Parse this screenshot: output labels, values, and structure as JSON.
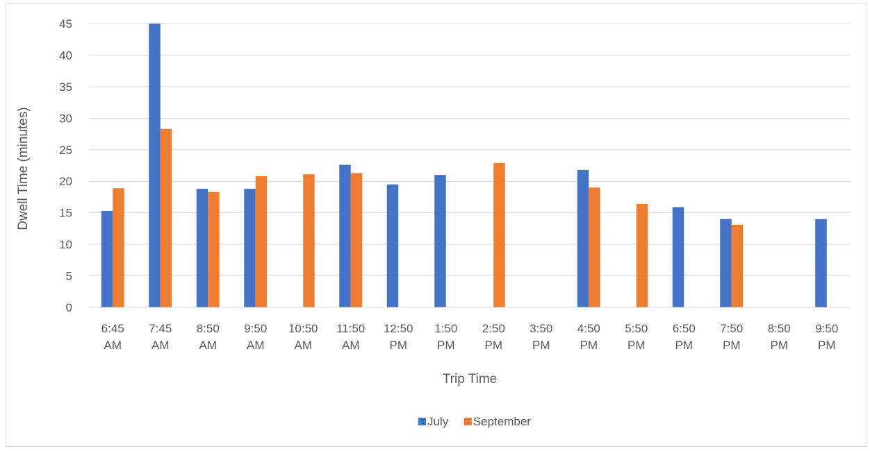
{
  "chart_data": {
    "type": "bar",
    "title": "",
    "xlabel": "Trip Time",
    "ylabel": "Dwell Time (minutes)",
    "ylim": [
      0,
      45
    ],
    "yticks": [
      0,
      5,
      10,
      15,
      20,
      25,
      30,
      35,
      40,
      45
    ],
    "grid": true,
    "legend_position": "bottom",
    "categories": [
      [
        "6:45",
        "AM"
      ],
      [
        "7:45",
        "AM"
      ],
      [
        "8:50",
        "AM"
      ],
      [
        "9:50",
        "AM"
      ],
      [
        "10:50",
        "AM"
      ],
      [
        "11:50",
        "AM"
      ],
      [
        "12:50",
        "PM"
      ],
      [
        "1:50",
        "PM"
      ],
      [
        "2:50",
        "PM"
      ],
      [
        "3:50",
        "PM"
      ],
      [
        "4:50",
        "PM"
      ],
      [
        "5:50",
        "PM"
      ],
      [
        "6:50",
        "PM"
      ],
      [
        "7:50",
        "PM"
      ],
      [
        "8:50",
        "PM"
      ],
      [
        "9:50",
        "PM"
      ]
    ],
    "series": [
      {
        "name": "July",
        "color": "#4472C4",
        "values": [
          15.3,
          45.0,
          18.8,
          18.8,
          null,
          22.6,
          19.5,
          21.0,
          null,
          null,
          21.8,
          null,
          15.9,
          14.0,
          null,
          14.0
        ]
      },
      {
        "name": "September",
        "color": "#ED7D31",
        "values": [
          18.9,
          28.3,
          18.3,
          20.8,
          21.1,
          21.3,
          null,
          null,
          22.9,
          null,
          19.0,
          16.4,
          null,
          13.1,
          null,
          null
        ]
      }
    ]
  }
}
